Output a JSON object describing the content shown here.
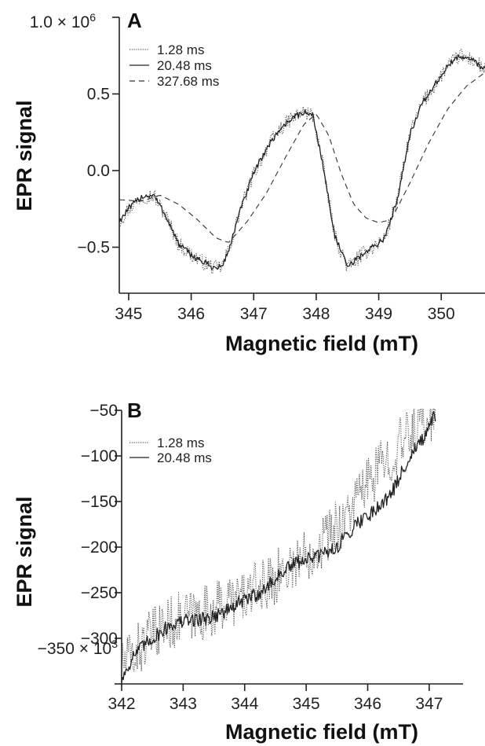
{
  "chart_data": [
    {
      "type": "line",
      "panel_label": "A",
      "xlabel": "Magnetic field (mT)",
      "ylabel": "EPR signal",
      "xlim": [
        344.85,
        350.7
      ],
      "ylim": [
        -0.8,
        1.0
      ],
      "xticks": [
        345,
        346,
        347,
        348,
        349,
        350
      ],
      "yticks": [
        {
          "value": -0.5,
          "label": "−0.5"
        },
        {
          "value": 0.0,
          "label": "0.0"
        },
        {
          "value": 0.5,
          "label": "0.5"
        }
      ],
      "ytop_label": "1.0 × 10",
      "ytop_exp": "6",
      "legend": "top-left",
      "grid": false,
      "series": [
        {
          "name": "1.28 ms",
          "style": "dotted",
          "color": "#555555",
          "x": [
            344.85,
            345.0,
            345.2,
            345.4,
            345.6,
            345.8,
            346.0,
            346.2,
            346.4,
            346.5,
            346.6,
            346.8,
            347.0,
            347.2,
            347.4,
            347.6,
            347.8,
            347.95,
            348.1,
            348.3,
            348.5,
            348.7,
            348.9,
            349.1,
            349.3,
            349.5,
            349.7,
            349.9,
            350.1,
            350.3,
            350.5,
            350.7
          ],
          "y": [
            -0.33,
            -0.25,
            -0.17,
            -0.16,
            -0.3,
            -0.48,
            -0.55,
            -0.6,
            -0.64,
            -0.62,
            -0.52,
            -0.24,
            -0.02,
            0.14,
            0.26,
            0.34,
            0.38,
            0.36,
            0.05,
            -0.43,
            -0.63,
            -0.56,
            -0.5,
            -0.44,
            -0.18,
            0.24,
            0.44,
            0.56,
            0.68,
            0.75,
            0.72,
            0.66
          ],
          "noise": 0.05
        },
        {
          "name": "20.48 ms",
          "style": "solid",
          "color": "#222222",
          "x": [
            344.85,
            345.0,
            345.2,
            345.4,
            345.6,
            345.8,
            346.0,
            346.2,
            346.4,
            346.5,
            346.6,
            346.8,
            347.0,
            347.2,
            347.4,
            347.6,
            347.8,
            347.95,
            348.1,
            348.3,
            348.5,
            348.7,
            348.9,
            349.1,
            349.3,
            349.5,
            349.7,
            349.9,
            350.1,
            350.3,
            350.5,
            350.7
          ],
          "y": [
            -0.33,
            -0.25,
            -0.17,
            -0.16,
            -0.3,
            -0.48,
            -0.55,
            -0.6,
            -0.64,
            -0.62,
            -0.52,
            -0.24,
            -0.02,
            0.14,
            0.26,
            0.34,
            0.38,
            0.36,
            0.05,
            -0.43,
            -0.63,
            -0.56,
            -0.5,
            -0.44,
            -0.18,
            0.24,
            0.44,
            0.56,
            0.68,
            0.75,
            0.72,
            0.66
          ],
          "noise": 0.02
        },
        {
          "name": "327.68 ms",
          "style": "dashed",
          "color": "#333333",
          "x": [
            344.85,
            345.2,
            345.5,
            345.8,
            346.1,
            346.4,
            346.6,
            346.9,
            347.2,
            347.5,
            347.8,
            348.0,
            348.2,
            348.4,
            348.6,
            348.8,
            349.0,
            349.2,
            349.5,
            349.8,
            350.1,
            350.4,
            350.7
          ],
          "y": [
            -0.19,
            -0.2,
            -0.16,
            -0.22,
            -0.32,
            -0.44,
            -0.47,
            -0.33,
            -0.15,
            0.08,
            0.3,
            0.37,
            0.23,
            -0.02,
            -0.22,
            -0.31,
            -0.34,
            -0.32,
            -0.08,
            0.18,
            0.4,
            0.55,
            0.64
          ],
          "noise": 0.0
        }
      ]
    },
    {
      "type": "line",
      "panel_label": "B",
      "xlabel": "Magnetic field (mT)",
      "ylabel": "EPR signal",
      "xlim": [
        342.0,
        347.55
      ],
      "ylim": [
        -350,
        -50
      ],
      "xticks": [
        342,
        343,
        344,
        345,
        346,
        347
      ],
      "yticks": [
        {
          "value": -300,
          "label": "−300"
        },
        {
          "value": -250,
          "label": "−250"
        },
        {
          "value": -200,
          "label": "−200"
        },
        {
          "value": -150,
          "label": "−150"
        },
        {
          "value": -100,
          "label": "−100"
        },
        {
          "value": -50,
          "label": "−50"
        }
      ],
      "ybottom_label": "−350 × 10",
      "ybottom_exp": "3",
      "legend": "top-left",
      "grid": false,
      "series": [
        {
          "name": "1.28 ms",
          "style": "dotted",
          "color": "#555555",
          "x": [
            342.0,
            342.3,
            342.6,
            342.9,
            343.2,
            343.5,
            343.8,
            344.1,
            344.4,
            344.7,
            345.0,
            345.3,
            345.6,
            345.9,
            346.2,
            346.5,
            346.8,
            347.1
          ],
          "y": [
            -330,
            -310,
            -290,
            -280,
            -275,
            -268,
            -258,
            -250,
            -238,
            -222,
            -210,
            -190,
            -170,
            -140,
            -112,
            -90,
            -68,
            -50
          ],
          "noise": 30
        },
        {
          "name": "20.48 ms",
          "style": "solid",
          "color": "#222222",
          "x": [
            342.0,
            342.2,
            342.5,
            342.8,
            343.1,
            343.4,
            343.7,
            344.0,
            344.3,
            344.6,
            344.9,
            345.2,
            345.5,
            345.8,
            346.1,
            346.4,
            346.7,
            346.95,
            347.1
          ],
          "y": [
            -345,
            -318,
            -300,
            -285,
            -280,
            -278,
            -270,
            -258,
            -248,
            -228,
            -215,
            -210,
            -200,
            -175,
            -160,
            -140,
            -98,
            -78,
            -55
          ],
          "noise": 8
        }
      ]
    }
  ]
}
